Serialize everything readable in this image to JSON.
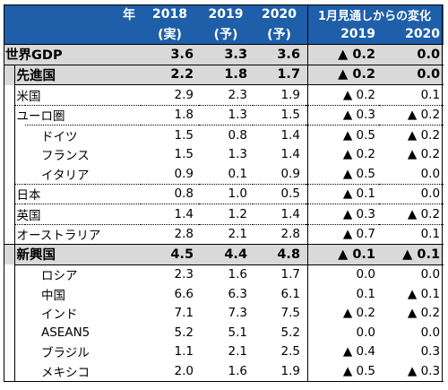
{
  "header": {
    "year_label": "年",
    "col_2018": "2018",
    "col_2019": "2019",
    "col_2020": "2020",
    "sub_2018": "(実)",
    "sub_2019": "(予)",
    "sub_2020": "(予)",
    "change_title": "1月見通しからの変化",
    "change_2019": "2019",
    "change_2020": "2020"
  },
  "rows": [
    {
      "label": "世界GDP",
      "v2018": "3.6",
      "v2019": "3.3",
      "v2020": "3.6",
      "c2019": "▲ 0.2",
      "c2020": "0.0"
    },
    {
      "label": "先進国",
      "v2018": "2.2",
      "v2019": "1.8",
      "v2020": "1.7",
      "c2019": "▲ 0.2",
      "c2020": "0.0"
    },
    {
      "label": "米国",
      "v2018": "2.9",
      "v2019": "2.3",
      "v2020": "1.9",
      "c2019": "▲ 0.2",
      "c2020": "0.1"
    },
    {
      "label": "ユーロ圏",
      "v2018": "1.8",
      "v2019": "1.3",
      "v2020": "1.5",
      "c2019": "▲ 0.3",
      "c2020": "▲ 0.2"
    },
    {
      "label": "ドイツ",
      "v2018": "1.5",
      "v2019": "0.8",
      "v2020": "1.4",
      "c2019": "▲ 0.5",
      "c2020": "▲ 0.2"
    },
    {
      "label": "フランス",
      "v2018": "1.5",
      "v2019": "1.3",
      "v2020": "1.4",
      "c2019": "▲ 0.2",
      "c2020": "▲ 0.2"
    },
    {
      "label": "イタリア",
      "v2018": "0.9",
      "v2019": "0.1",
      "v2020": "0.9",
      "c2019": "▲ 0.5",
      "c2020": "0.0"
    },
    {
      "label": "日本",
      "v2018": "0.8",
      "v2019": "1.0",
      "v2020": "0.5",
      "c2019": "▲ 0.1",
      "c2020": "0.0"
    },
    {
      "label": "英国",
      "v2018": "1.4",
      "v2019": "1.2",
      "v2020": "1.4",
      "c2019": "▲ 0.3",
      "c2020": "▲ 0.2"
    },
    {
      "label": "オーストラリア",
      "v2018": "2.8",
      "v2019": "2.1",
      "v2020": "2.8",
      "c2019": "▲ 0.7",
      "c2020": "0.1"
    },
    {
      "label": "新興国",
      "v2018": "4.5",
      "v2019": "4.4",
      "v2020": "4.8",
      "c2019": "▲ 0.1",
      "c2020": "▲ 0.1"
    },
    {
      "label": "ロシア",
      "v2018": "2.3",
      "v2019": "1.6",
      "v2020": "1.7",
      "c2019": "0.0",
      "c2020": "0.0"
    },
    {
      "label": "中国",
      "v2018": "6.6",
      "v2019": "6.3",
      "v2020": "6.1",
      "c2019": "0.1",
      "c2020": "▲ 0.1"
    },
    {
      "label": "インド",
      "v2018": "7.1",
      "v2019": "7.3",
      "v2020": "7.5",
      "c2019": "▲ 0.2",
      "c2020": "▲ 0.2"
    },
    {
      "label": "ASEAN5",
      "v2018": "5.2",
      "v2019": "5.1",
      "v2020": "5.2",
      "c2019": "0.0",
      "c2020": "0.0"
    },
    {
      "label": "ブラジル",
      "v2018": "1.1",
      "v2019": "2.1",
      "v2020": "2.5",
      "c2019": "▲ 0.4",
      "c2020": "0.3"
    },
    {
      "label": "メキシコ",
      "v2018": "2.0",
      "v2019": "1.6",
      "v2020": "1.9",
      "c2019": "▲ 0.5",
      "c2020": "▲ 0.3"
    }
  ],
  "colors": {
    "header_bg": "#1f5fa9",
    "header_text": "#ffffff",
    "highlight_bg": "#d9d9d9"
  }
}
